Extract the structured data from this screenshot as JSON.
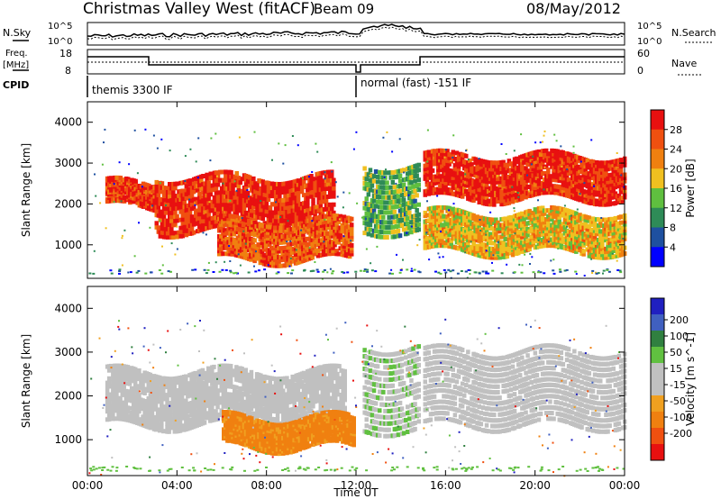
{
  "header": {
    "station": "Christmas Valley West (fitACF)",
    "beam": "Beam 09",
    "date": "08/May/2012"
  },
  "strip_labels": {
    "nsky": "N.Sky",
    "nsky_ticks": [
      "10^5",
      "10^0"
    ],
    "nsearch": "N.Search",
    "nsearch_ticks": [
      "10^5",
      "10^0"
    ],
    "freq": "Freq.",
    "freq_unit": "[MHz]",
    "freq_ticks": [
      "18",
      "8"
    ],
    "nave": "Nave",
    "nave_ticks": [
      "60",
      "0"
    ],
    "cpid": "CPID",
    "cpid_segments": [
      "themis 3300 IF",
      "normal (fast) -151 IF"
    ]
  },
  "colors": {
    "power": [
      "#0000ff",
      "#1e50a0",
      "#2e8b57",
      "#5fbf3f",
      "#f0c020",
      "#f08010",
      "#f05010",
      "#e81010"
    ],
    "velocity": [
      "#2020c0",
      "#4060c0",
      "#308040",
      "#60c040",
      "#c0c0c0",
      "#c0c0c0",
      "#f0a020",
      "#f08010",
      "#f05010",
      "#e81010"
    ],
    "grey": "#c0c0c0"
  },
  "chart_data": [
    {
      "type": "heatmap",
      "title": "Power",
      "ylabel": "Slant Range [km]",
      "xlabel": "",
      "x_ticks": [
        "00:00",
        "04:00",
        "08:00",
        "12:00",
        "16:00",
        "20:00",
        "00:00"
      ],
      "xlim_hours": [
        0,
        24
      ],
      "ylim": [
        180,
        4500
      ],
      "y_ticks": [
        1000,
        2000,
        3000,
        4000
      ],
      "colorbar_label": "Power [dB]",
      "colorbar_ticks": [
        "4",
        "8",
        "12",
        "16",
        "20",
        "24",
        "28"
      ],
      "colorbar_range": [
        0,
        30
      ],
      "features": [
        {
          "name": "band-a",
          "hours": [
            0.8,
            3.0
          ],
          "range_km": [
            1900,
            2500
          ],
          "level_db": 26
        },
        {
          "name": "band-b",
          "hours": [
            3.0,
            11.0
          ],
          "range_km": [
            1300,
            2700
          ],
          "level_db": 27
        },
        {
          "name": "band-c",
          "hours": [
            5.8,
            11.8
          ],
          "range_km": [
            600,
            1600
          ],
          "level_db": 24
        },
        {
          "name": "band-d",
          "hours": [
            12.3,
            14.8
          ],
          "range_km": [
            1300,
            3000
          ],
          "level_db": 12
        },
        {
          "name": "band-e",
          "hours": [
            15.0,
            24.0
          ],
          "range_km": [
            2100,
            3200
          ],
          "level_db": 27
        },
        {
          "name": "band-f",
          "hours": [
            15.0,
            24.0
          ],
          "range_km": [
            800,
            1800
          ],
          "level_db": 18
        }
      ]
    },
    {
      "type": "heatmap",
      "title": "Velocity",
      "ylabel": "Slant Range [km]",
      "xlabel": "Time UT",
      "x_ticks": [
        "00:00",
        "04:00",
        "08:00",
        "12:00",
        "16:00",
        "20:00",
        "00:00"
      ],
      "xlim_hours": [
        0,
        24
      ],
      "ylim": [
        180,
        4500
      ],
      "y_ticks": [
        1000,
        2000,
        3000,
        4000
      ],
      "colorbar_label": "Velocity [m s^-1]",
      "colorbar_ticks": [
        "200",
        "100",
        "50",
        "15",
        "-15",
        "-50",
        "-100",
        "-200"
      ],
      "colorbar_range": [
        -250,
        250
      ],
      "features": [
        {
          "name": "v-band-a",
          "hours": [
            0.8,
            11.5
          ],
          "range_km": [
            1300,
            2600
          ],
          "velocity": 0
        },
        {
          "name": "v-band-b",
          "hours": [
            6.0,
            11.9
          ],
          "range_km": [
            800,
            1500
          ],
          "velocity": -120
        },
        {
          "name": "v-band-c",
          "hours": [
            12.3,
            14.8
          ],
          "range_km": [
            1200,
            3200
          ],
          "velocity": 40
        },
        {
          "name": "v-band-d",
          "hours": [
            15.0,
            24.0
          ],
          "range_km": [
            1300,
            3100
          ],
          "velocity": 0
        }
      ]
    }
  ]
}
